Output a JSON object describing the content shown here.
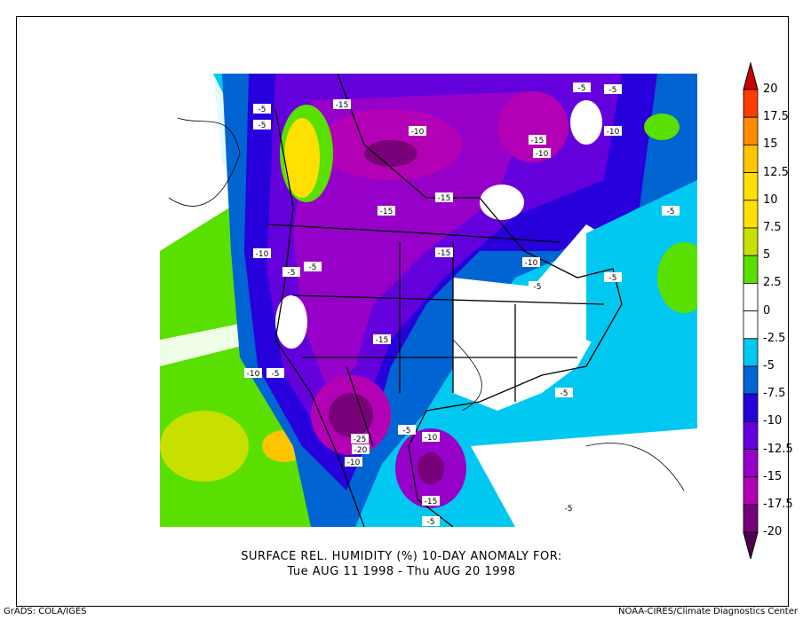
{
  "title_line1": "SURFACE REL. HUMIDITY (%)   10-DAY ANOMALY FOR:",
  "title_line2": "Tue AUG 11 1998 - Thu AUG 20 1998",
  "footer_left": "GrADS: COLA/IGES",
  "footer_right": "NOAA-CIRES/Climate Diagnostics Center",
  "colorbar": {
    "labels": [
      "20",
      "17.5",
      "15",
      "12.5",
      "10",
      "7.5",
      "5",
      "2.5",
      "0",
      "-2.5",
      "-5",
      "-7.5",
      "-10",
      "-12.5",
      "-15",
      "-17.5",
      "-20"
    ],
    "top_triangle_color": "#c80000",
    "colors": [
      "#ff3c00",
      "#ff8c00",
      "#ffc400",
      "#ffe000",
      "#ffe000",
      "#c8e000",
      "#5ae000",
      "#ffffff",
      "#ffffff",
      "#00c8f0",
      "#0064d2",
      "#2800dc",
      "#6400dc",
      "#9600c8",
      "#b400b4",
      "#780078"
    ],
    "bottom_triangle_color": "#500050"
  },
  "contour_labels": [
    {
      "t": "-5"
    },
    {
      "t": "-15"
    },
    {
      "t": "-10"
    },
    {
      "t": "-15"
    },
    {
      "t": "-10"
    },
    {
      "t": "-5"
    },
    {
      "t": "-5"
    },
    {
      "t": "-10"
    },
    {
      "t": "-15"
    },
    {
      "t": "-15"
    },
    {
      "t": "-5"
    },
    {
      "t": "-15"
    },
    {
      "t": "-10"
    },
    {
      "t": "-5"
    },
    {
      "t": "-5"
    },
    {
      "t": "-10"
    },
    {
      "t": "-5"
    },
    {
      "t": "-15"
    },
    {
      "t": "-5"
    },
    {
      "t": "-10"
    },
    {
      "t": "-5"
    },
    {
      "t": "-25"
    },
    {
      "t": "-20"
    },
    {
      "t": "-10"
    },
    {
      "t": "-5"
    },
    {
      "t": "-10"
    },
    {
      "t": "-15"
    },
    {
      "t": "-5"
    },
    {
      "t": "-5"
    },
    {
      "t": "-5"
    },
    {
      "t": "-5"
    }
  ]
}
